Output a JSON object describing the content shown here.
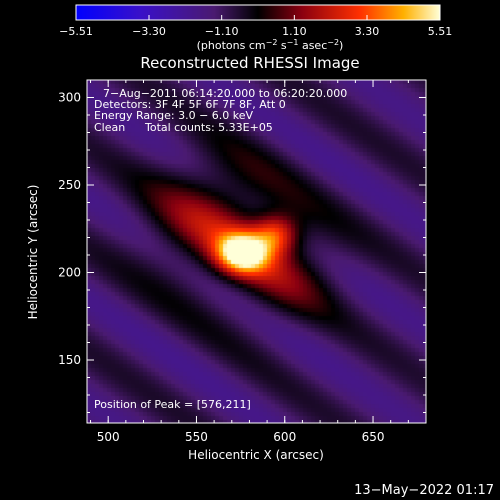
{
  "chart_data": {
    "type": "heatmap",
    "title": "Reconstructed RHESSI Image",
    "xlabel": "Heliocentric X (arcsec)",
    "ylabel": "Heliocentric Y (arcsec)",
    "xlim": [
      488,
      680
    ],
    "ylim": [
      114,
      310
    ],
    "x_ticks": [
      500,
      550,
      600,
      650
    ],
    "y_ticks": [
      150,
      200,
      250,
      300
    ],
    "colorbar": {
      "min": -5.51,
      "max": 5.51,
      "ticks": [
        {
          "value": -5.51,
          "label": "−5.51"
        },
        {
          "value": -3.3,
          "label": "−3.30"
        },
        {
          "value": -1.1,
          "label": "−1.10"
        },
        {
          "value": 1.1,
          "label": "1.10"
        },
        {
          "value": 3.3,
          "label": "3.30"
        },
        {
          "value": 5.51,
          "label": "5.51"
        }
      ],
      "unit_parts": [
        "(photons cm",
        "−2",
        " s",
        "−1",
        " asec",
        "−2",
        ")"
      ]
    },
    "annotations": [
      "7−Aug−2011 06:14:20.000 to 06:20:20.000",
      "Detectors: 3F 4F 5F 6F 7F 8F, Att 0",
      "Energy Range: 3.0 − 6.0 keV",
      "Clean",
      "Total counts: 5.33E+05"
    ],
    "peak_label": "Position of Peak = [576,211]",
    "peak": {
      "x": 576,
      "y": 211,
      "value": 5.51
    },
    "sources": [
      {
        "x": 576,
        "y": 211,
        "sx": 10,
        "sy": 8,
        "amp": 5.51
      },
      {
        "x": 595,
        "y": 222,
        "sx": 9,
        "sy": 8,
        "amp": 3.6
      },
      {
        "x": 560,
        "y": 230,
        "sx": 26,
        "sy": 24,
        "amp": 2.4
      },
      {
        "x": 600,
        "y": 200,
        "sx": 22,
        "sy": 20,
        "amp": 1.6
      }
    ],
    "stripes": {
      "angle_deg": 35,
      "period_arcsec": 48,
      "amplitude": 1.4,
      "decay_arcsec": 70
    }
  },
  "footer": {
    "timestamp": "13−May−2022 01:17"
  }
}
